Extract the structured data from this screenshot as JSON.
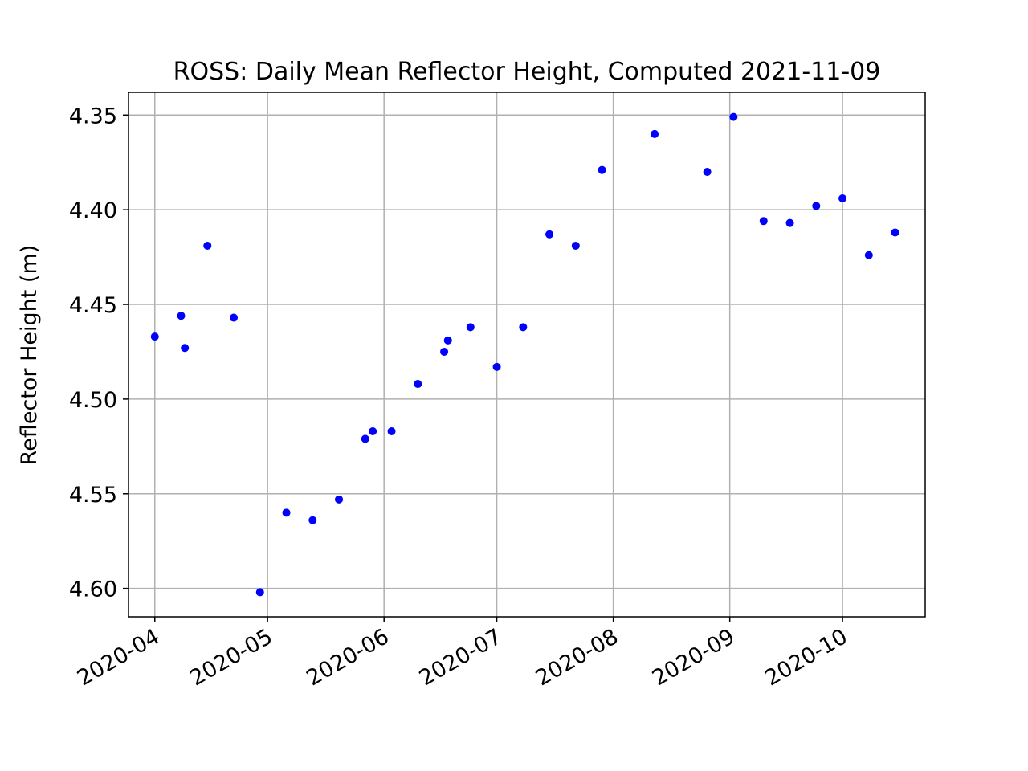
{
  "chart_data": {
    "type": "scatter",
    "title": "ROSS: Daily Mean Reflector Height, Computed 2021-11-09",
    "xlabel": "",
    "ylabel": "Reflector Height (m)",
    "x_axis_type": "date",
    "y_inverted": true,
    "xlim": [
      "2020-03-25",
      "2020-10-23"
    ],
    "ylim": [
      4.615,
      4.338
    ],
    "grid": true,
    "marker_color": "#0000ff",
    "x_ticks": [
      {
        "date": "2020-04-01",
        "label": "2020-04"
      },
      {
        "date": "2020-05-01",
        "label": "2020-05"
      },
      {
        "date": "2020-06-01",
        "label": "2020-06"
      },
      {
        "date": "2020-07-01",
        "label": "2020-07"
      },
      {
        "date": "2020-08-01",
        "label": "2020-08"
      },
      {
        "date": "2020-09-01",
        "label": "2020-09"
      },
      {
        "date": "2020-10-01",
        "label": "2020-10"
      }
    ],
    "y_ticks": [
      {
        "value": 4.35,
        "label": "4.35"
      },
      {
        "value": 4.4,
        "label": "4.40"
      },
      {
        "value": 4.45,
        "label": "4.45"
      },
      {
        "value": 4.5,
        "label": "4.50"
      },
      {
        "value": 4.55,
        "label": "4.55"
      },
      {
        "value": 4.6,
        "label": "4.60"
      }
    ],
    "series": [
      {
        "points": [
          {
            "x": "2020-04-01",
            "y": 4.467
          },
          {
            "x": "2020-04-08",
            "y": 4.456
          },
          {
            "x": "2020-04-09",
            "y": 4.473
          },
          {
            "x": "2020-04-15",
            "y": 4.419
          },
          {
            "x": "2020-04-22",
            "y": 4.457
          },
          {
            "x": "2020-04-29",
            "y": 4.602
          },
          {
            "x": "2020-05-06",
            "y": 4.56
          },
          {
            "x": "2020-05-13",
            "y": 4.564
          },
          {
            "x": "2020-05-20",
            "y": 4.553
          },
          {
            "x": "2020-05-27",
            "y": 4.521
          },
          {
            "x": "2020-05-29",
            "y": 4.517
          },
          {
            "x": "2020-06-03",
            "y": 4.517
          },
          {
            "x": "2020-06-10",
            "y": 4.492
          },
          {
            "x": "2020-06-17",
            "y": 4.475
          },
          {
            "x": "2020-06-18",
            "y": 4.469
          },
          {
            "x": "2020-06-24",
            "y": 4.462
          },
          {
            "x": "2020-07-01",
            "y": 4.483
          },
          {
            "x": "2020-07-08",
            "y": 4.462
          },
          {
            "x": "2020-07-15",
            "y": 4.413
          },
          {
            "x": "2020-07-22",
            "y": 4.419
          },
          {
            "x": "2020-07-29",
            "y": 4.379
          },
          {
            "x": "2020-08-12",
            "y": 4.36
          },
          {
            "x": "2020-08-26",
            "y": 4.38
          },
          {
            "x": "2020-09-02",
            "y": 4.351
          },
          {
            "x": "2020-09-10",
            "y": 4.406
          },
          {
            "x": "2020-09-17",
            "y": 4.407
          },
          {
            "x": "2020-09-24",
            "y": 4.398
          },
          {
            "x": "2020-10-01",
            "y": 4.394
          },
          {
            "x": "2020-10-08",
            "y": 4.424
          },
          {
            "x": "2020-10-15",
            "y": 4.412
          }
        ]
      }
    ]
  }
}
